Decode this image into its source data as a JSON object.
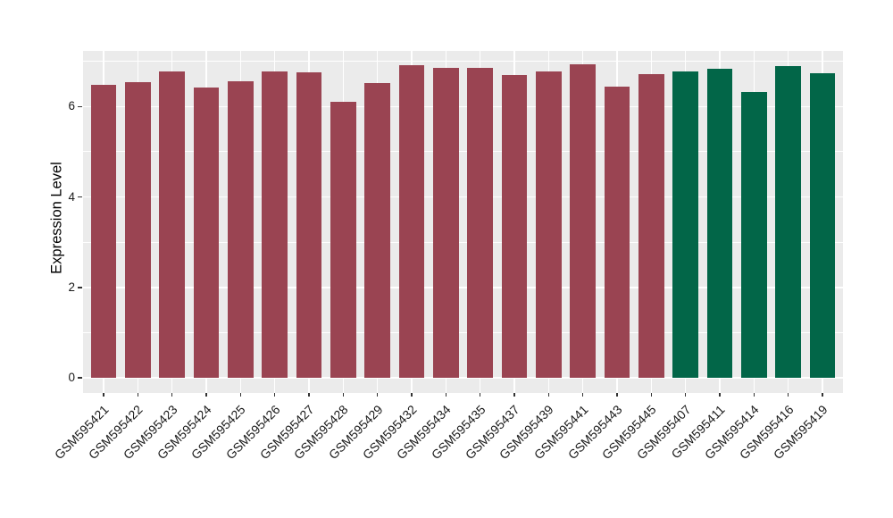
{
  "chart_data": {
    "type": "bar",
    "title": "",
    "xlabel": "",
    "ylabel": "Expression Level",
    "ylim": [
      0,
      7.23
    ],
    "yticks": [
      0,
      2,
      4,
      6
    ],
    "y_tick_labels": [
      "0",
      "2",
      "4",
      "6"
    ],
    "yticks_minor": [
      1,
      3,
      5,
      7
    ],
    "grid": true,
    "legend_position": "none",
    "x_tick_rotation": 45,
    "panel_background": "#EBEBEB",
    "gridline_color": "#FFFFFF",
    "tick_color": "#333333",
    "group_colors": [
      "#9A4452",
      "#026648"
    ],
    "categories": [
      "GSM595421",
      "GSM595422",
      "GSM595423",
      "GSM595424",
      "GSM595425",
      "GSM595426",
      "GSM595427",
      "GSM595428",
      "GSM595429",
      "GSM595432",
      "GSM595434",
      "GSM595435",
      "GSM595437",
      "GSM595439",
      "GSM595441",
      "GSM595443",
      "GSM595445",
      "GSM595407",
      "GSM595411",
      "GSM595414",
      "GSM595416",
      "GSM595419"
    ],
    "values": [
      6.47,
      6.54,
      6.77,
      6.42,
      6.55,
      6.77,
      6.75,
      6.1,
      6.51,
      6.91,
      6.85,
      6.85,
      6.69,
      6.77,
      6.93,
      6.44,
      6.71,
      6.78,
      6.83,
      6.33,
      6.89,
      6.73
    ],
    "bar_groups": [
      0,
      0,
      0,
      0,
      0,
      0,
      0,
      0,
      0,
      0,
      0,
      0,
      0,
      0,
      0,
      0,
      0,
      1,
      1,
      1,
      1,
      1
    ]
  }
}
